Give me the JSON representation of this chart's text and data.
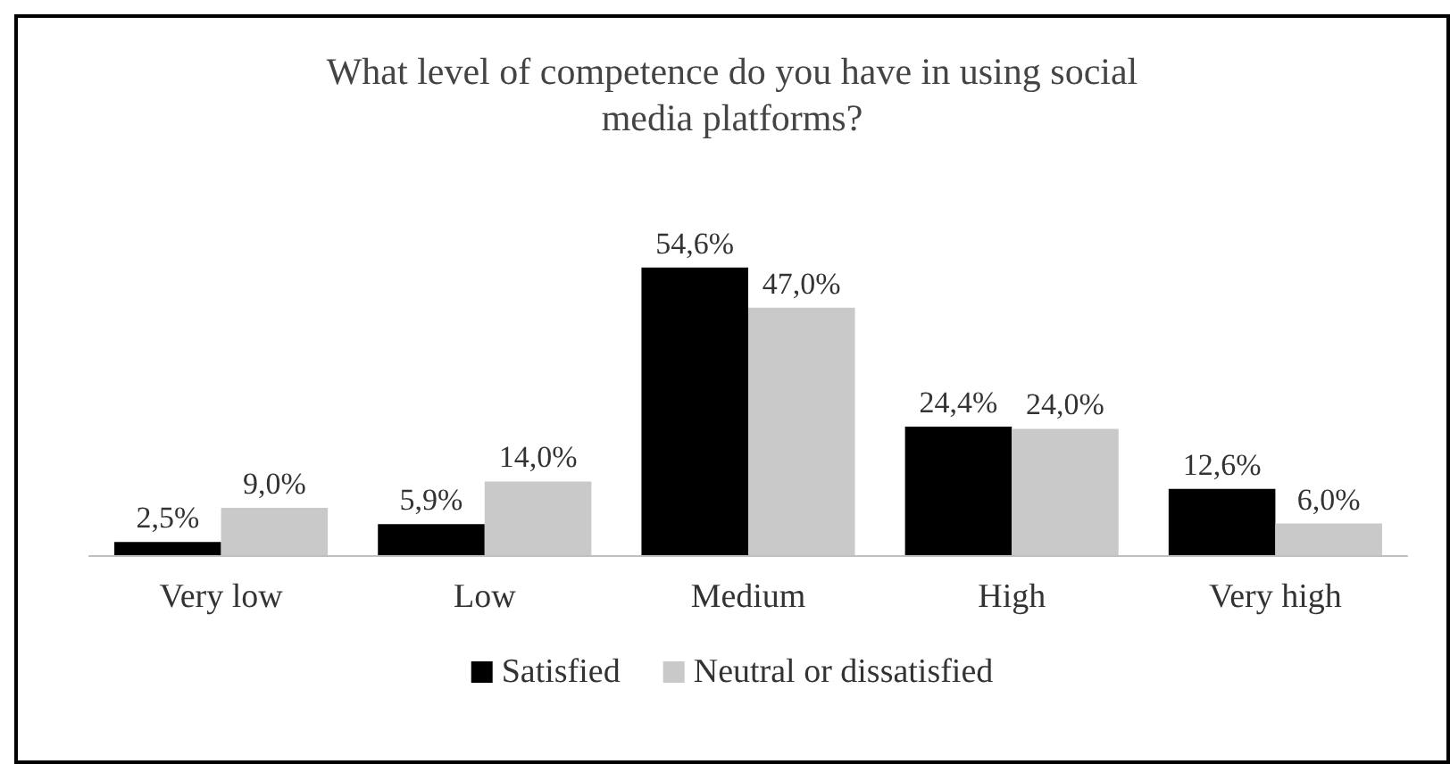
{
  "chart_data": {
    "type": "bar",
    "title": "What level of competence do you have in using social\nmedia platforms?",
    "categories": [
      "Very low",
      "Low",
      "Medium",
      "High",
      "Very high"
    ],
    "series": [
      {
        "name": "Satisfied",
        "color": "#000000",
        "values": [
          2.5,
          5.9,
          54.6,
          24.4,
          12.6
        ],
        "value_labels": [
          "2,5%",
          "5,9%",
          "54,6%",
          "24,4%",
          "12,6%"
        ]
      },
      {
        "name": "Neutral or dissatisfied",
        "color": "#c9c9c9",
        "values": [
          9.0,
          14.0,
          47.0,
          24.0,
          6.0
        ],
        "value_labels": [
          "9,0%",
          "14,0%",
          "47,0%",
          "24,0%",
          "6,0%"
        ]
      }
    ],
    "legend": "bottom",
    "tick_labels": "x"
  }
}
